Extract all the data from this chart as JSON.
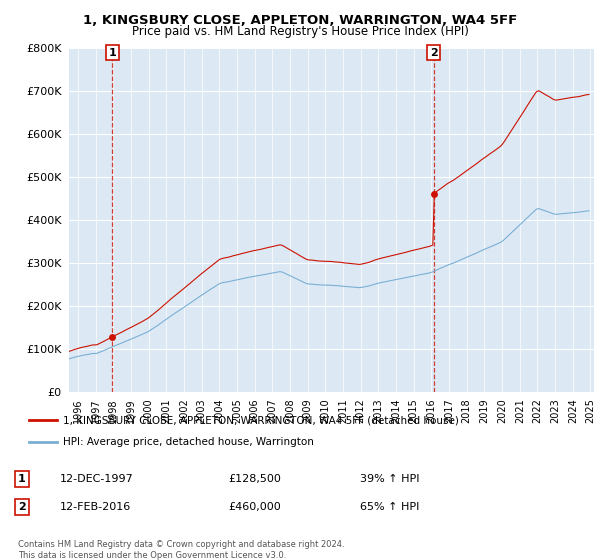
{
  "title": "1, KINGSBURY CLOSE, APPLETON, WARRINGTON, WA4 5FF",
  "subtitle": "Price paid vs. HM Land Registry's House Price Index (HPI)",
  "ylim": [
    0,
    800000
  ],
  "yticks": [
    0,
    100000,
    200000,
    300000,
    400000,
    500000,
    600000,
    700000,
    800000
  ],
  "ytick_labels": [
    "£0",
    "£100K",
    "£200K",
    "£300K",
    "£400K",
    "£500K",
    "£600K",
    "£700K",
    "£800K"
  ],
  "hpi_color": "#7aafd4",
  "price_color": "#cc1100",
  "vline_color": "#cc1100",
  "plot_bg_color": "#dce9f5",
  "background_color": "#ffffff",
  "grid_color": "#ffffff",
  "legend_label_price": "1, KINGSBURY CLOSE, APPLETON, WARRINGTON, WA4 5FF (detached house)",
  "legend_label_hpi": "HPI: Average price, detached house, Warrington",
  "sale1_date": "12-DEC-1997",
  "sale1_price": "£128,500",
  "sale1_hpi": "39% ↑ HPI",
  "sale1_year": 1997.958,
  "sale1_value": 128500,
  "sale2_date": "12-FEB-2016",
  "sale2_price": "£460,000",
  "sale2_hpi": "65% ↑ HPI",
  "sale2_year": 2016.125,
  "sale2_value": 460000,
  "footer": "Contains HM Land Registry data © Crown copyright and database right 2024.\nThis data is licensed under the Open Government Licence v3.0.",
  "xmin": 1995.5,
  "xmax": 2025.2
}
